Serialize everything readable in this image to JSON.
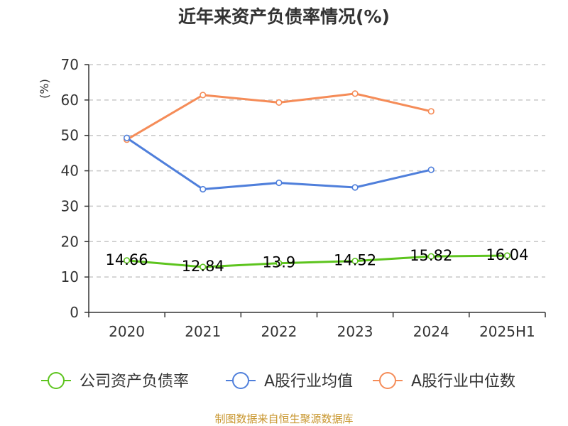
{
  "title": "近年来资产负债率情况(%)",
  "source": "制图数据来自恒生聚源数据库",
  "chart_data": {
    "type": "line",
    "title": "近年来资产负债率情况(%)",
    "ylabel": "(%)",
    "ylabel_color": "#cc0000",
    "categories": [
      "2020",
      "2021",
      "2022",
      "2023",
      "2024",
      "2025H1"
    ],
    "ylim": [
      0,
      70
    ],
    "yticks": [
      0,
      10,
      20,
      30,
      40,
      50,
      60,
      70
    ],
    "grid": true,
    "legend_position": "bottom",
    "series": [
      {
        "name": "公司资产负债率",
        "color": "#5dc41e",
        "values": [
          14.66,
          12.84,
          13.9,
          14.52,
          15.82,
          16.04
        ],
        "labels": [
          "14.66",
          "12.84",
          "13.9",
          "14.52",
          "15.82",
          "16.04"
        ]
      },
      {
        "name": "A股行业均值",
        "color": "#4f7fdb",
        "values": [
          49.3,
          34.8,
          36.6,
          35.3,
          40.3,
          null
        ]
      },
      {
        "name": "A股行业中位数",
        "color": "#f58c58",
        "values": [
          48.8,
          61.4,
          59.3,
          61.8,
          56.8,
          null
        ]
      }
    ]
  }
}
